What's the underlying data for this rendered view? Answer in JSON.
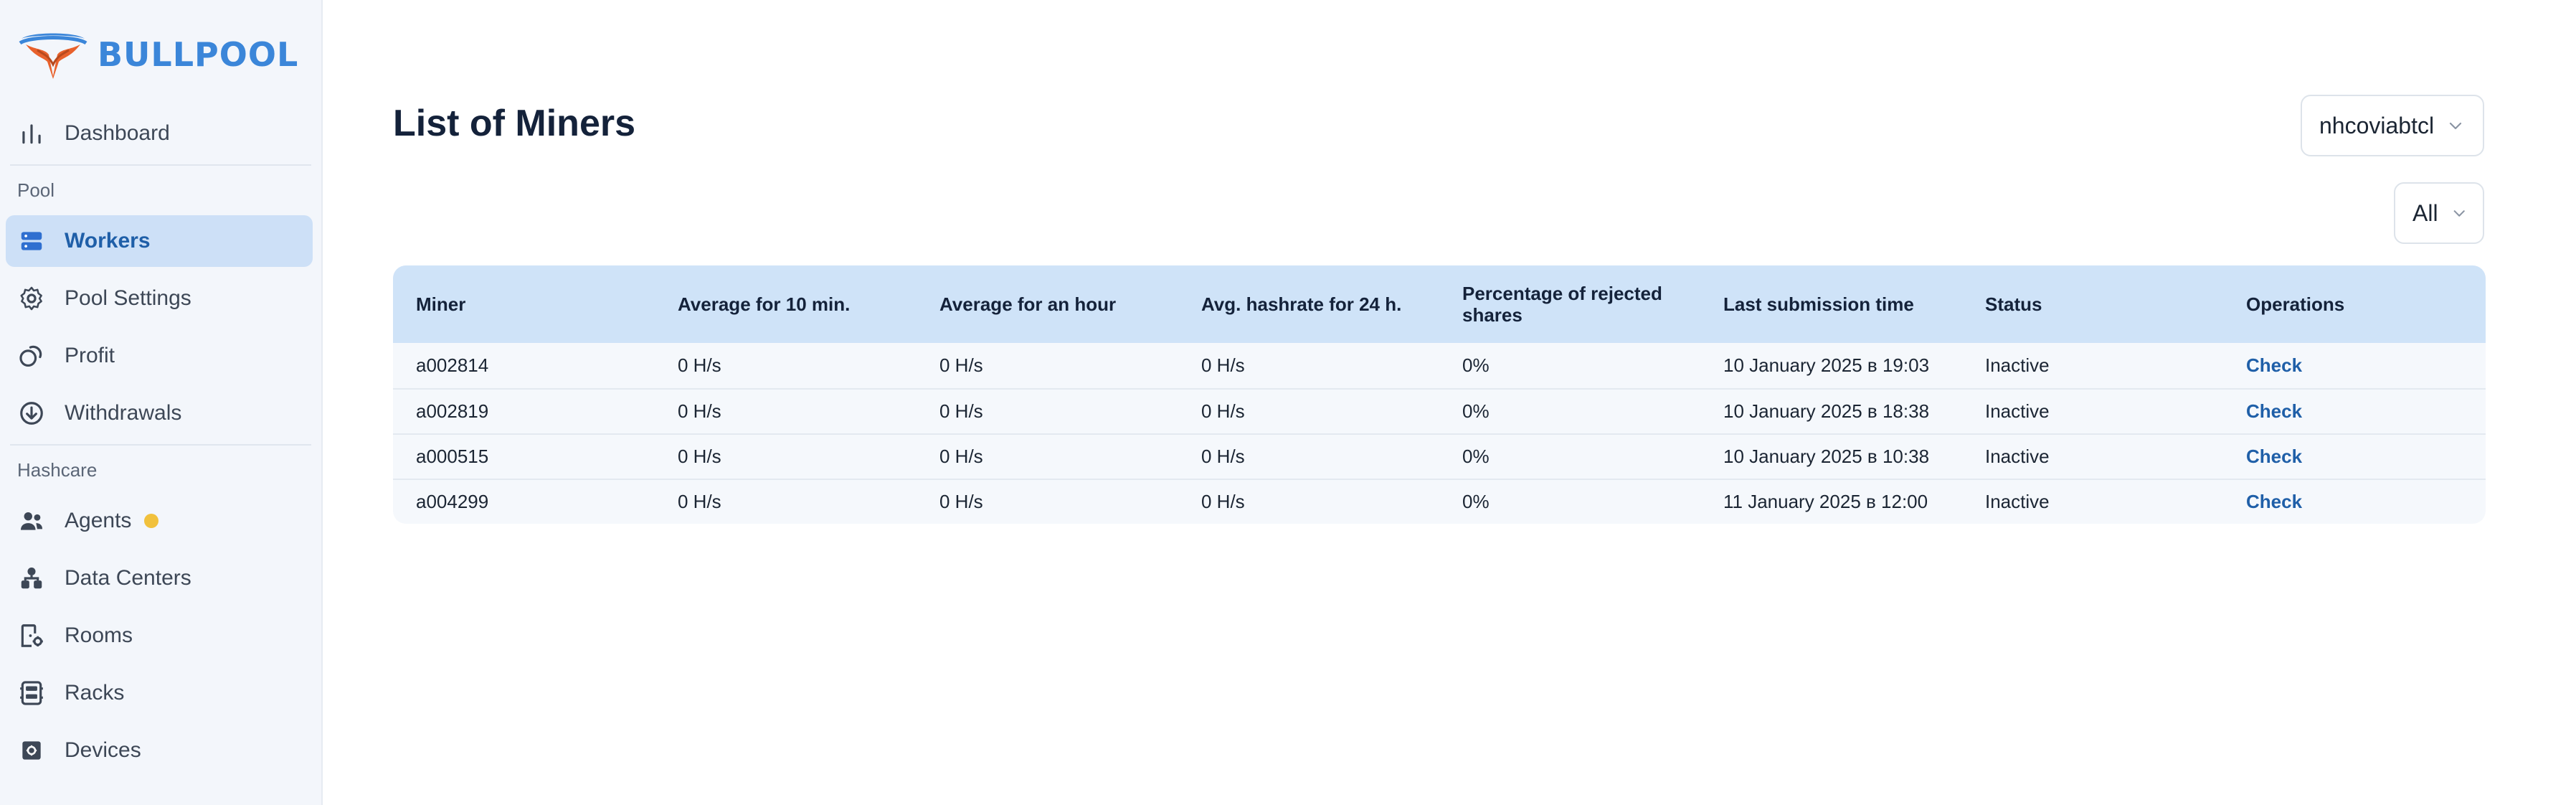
{
  "app": {
    "logo_text": "BULLPOOL",
    "accent": "#3b86d9",
    "active_bg": "#cde0f7",
    "badge_color": "#f1c13d"
  },
  "sidebar": {
    "dashboard": {
      "label": "Dashboard",
      "icon": "bar-chart-icon"
    },
    "section_pool": "Pool",
    "workers": {
      "label": "Workers",
      "icon": "server-icon"
    },
    "pool_settings": {
      "label": "Pool Settings",
      "icon": "gear-icon"
    },
    "profit": {
      "label": "Profit",
      "icon": "coins-icon"
    },
    "withdrawals": {
      "label": "Withdrawals",
      "icon": "download-circle-icon"
    },
    "section_hashcare": "Hashcare",
    "agents": {
      "label": "Agents",
      "icon": "users-icon"
    },
    "data_centers": {
      "label": "Data Centers",
      "icon": "hierarchy-icon"
    },
    "rooms": {
      "label": "Rooms",
      "icon": "door-gear-icon"
    },
    "racks": {
      "label": "Racks",
      "icon": "rack-icon"
    },
    "devices": {
      "label": "Devices",
      "icon": "chip-icon"
    }
  },
  "main": {
    "title": "List of Miners",
    "account_select": "nhcoviabtcl",
    "filter_select": "All",
    "table": {
      "headers": {
        "miner": "Miner",
        "avg10": "Average for 10 min.",
        "avg_hour": "Average for an hour",
        "avg24": "Avg. hashrate for 24 h.",
        "rejected_1": "Percentage of rejected",
        "rejected_2": "shares",
        "last": "Last submission time",
        "status": "Status",
        "ops": "Operations"
      },
      "rows": [
        {
          "miner": "a002814",
          "avg10": "0 H/s",
          "avg_hour": "0 H/s",
          "avg24": "0 H/s",
          "rejected": "0%",
          "last": "10 January 2025 в 19:03",
          "status": "Inactive",
          "op": "Check"
        },
        {
          "miner": "a002819",
          "avg10": "0 H/s",
          "avg_hour": "0 H/s",
          "avg24": "0 H/s",
          "rejected": "0%",
          "last": "10 January 2025 в 18:38",
          "status": "Inactive",
          "op": "Check"
        },
        {
          "miner": "a000515",
          "avg10": "0 H/s",
          "avg_hour": "0 H/s",
          "avg24": "0 H/s",
          "rejected": "0%",
          "last": "10 January 2025 в 10:38",
          "status": "Inactive",
          "op": "Check"
        },
        {
          "miner": "a004299",
          "avg10": "0 H/s",
          "avg_hour": "0 H/s",
          "avg24": "0 H/s",
          "rejected": "0%",
          "last": "11 January 2025 в 12:00",
          "status": "Inactive",
          "op": "Check"
        }
      ]
    }
  }
}
